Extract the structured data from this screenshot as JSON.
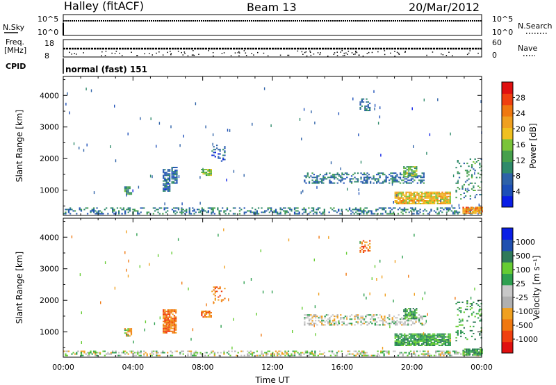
{
  "header": {
    "station": "Halley (fitACF)",
    "beam": "Beam 13",
    "date": "20/Mar/2012"
  },
  "top_panels": {
    "nsky_label": "N.Sky",
    "nsearch_label": "N.Search",
    "nsky_ticks": [
      "10^5",
      "10^0"
    ],
    "nsearch_ticks": [
      "10^5",
      "10^0"
    ],
    "freq_label_1": "Freq.",
    "freq_label_2": "[MHz]",
    "freq_ticks": [
      "18",
      "8"
    ],
    "nave_label": "Nave",
    "nave_ticks": [
      "60",
      "0"
    ],
    "cpid_label": "CPID",
    "cpid_value": "normal (fast) 151"
  },
  "colors": {
    "power": [
      "#0a1ee6",
      "#1d4fb8",
      "#2e62a8",
      "#2f8a6a",
      "#46a04c",
      "#7ac43a",
      "#f0c020",
      "#f0a020",
      "#f07810",
      "#f04010",
      "#e01010"
    ],
    "velocity": [
      "#e01010",
      "#f04010",
      "#f07810",
      "#f0a020",
      "#b0b0b0",
      "#c8c8c8",
      "#2fa050",
      "#66cc33",
      "#2f7a5a",
      "#2050b0",
      "#0a1ee6"
    ]
  },
  "chart_data": [
    {
      "type": "heatmap",
      "name": "power",
      "xlabel": "",
      "ylabel": "Slant Range [km]",
      "ylim": [
        200,
        4600
      ],
      "xlim": [
        0,
        24
      ],
      "y_ticks": [
        "1000",
        "2000",
        "3000",
        "4000"
      ],
      "colorbar_label": "Power [dB]",
      "colorbar_ticks": [
        "4",
        "8",
        "12",
        "16",
        "20",
        "24",
        "28"
      ],
      "colorbar_range": [
        0,
        32
      ],
      "regions": [
        {
          "t0": 0.0,
          "t1": 24.0,
          "r0": 230,
          "r1": 450,
          "value": 8,
          "density": 0.35
        },
        {
          "t0": 3.5,
          "t1": 3.9,
          "r0": 850,
          "r1": 1100,
          "value": 10,
          "density": 0.7
        },
        {
          "t0": 5.7,
          "t1": 6.1,
          "r0": 950,
          "r1": 1650,
          "value": 6,
          "density": 0.8
        },
        {
          "t0": 6.2,
          "t1": 6.5,
          "r0": 1200,
          "r1": 1700,
          "value": 6,
          "density": 0.8
        },
        {
          "t0": 7.9,
          "t1": 8.5,
          "r0": 1450,
          "r1": 1650,
          "value": 14,
          "density": 0.8
        },
        {
          "t0": 13.8,
          "t1": 20.8,
          "r0": 1200,
          "r1": 1550,
          "value": 7,
          "density": 0.45
        },
        {
          "t0": 19.5,
          "t1": 20.3,
          "r0": 1400,
          "r1": 1750,
          "value": 14,
          "density": 0.7
        },
        {
          "t0": 19.0,
          "t1": 22.2,
          "r0": 550,
          "r1": 950,
          "value": 20,
          "density": 0.85
        },
        {
          "t0": 22.9,
          "t1": 24.0,
          "r0": 250,
          "r1": 450,
          "value": 24,
          "density": 0.9
        },
        {
          "t0": 17.0,
          "t1": 17.6,
          "r0": 3500,
          "r1": 3900,
          "value": 6,
          "density": 0.4
        },
        {
          "t0": 8.5,
          "t1": 9.3,
          "r0": 1900,
          "r1": 2400,
          "value": 5,
          "density": 0.25
        },
        {
          "t0": 22.5,
          "t1": 24.0,
          "r0": 700,
          "r1": 2000,
          "value": 10,
          "density": 0.15
        }
      ]
    },
    {
      "type": "heatmap",
      "name": "velocity",
      "xlabel": "Time UT",
      "ylabel": "Slant Range [km]",
      "ylim": [
        200,
        4600
      ],
      "xlim": [
        0,
        24
      ],
      "x_ticks": [
        "00:00",
        "04:00",
        "08:00",
        "12:00",
        "16:00",
        "20:00",
        "00:00"
      ],
      "y_ticks": [
        "1000",
        "2000",
        "3000",
        "4000"
      ],
      "colorbar_label": "Velocity [m s⁻¹]",
      "colorbar_ticks": [
        "1000",
        "500",
        "100",
        "25",
        "-25",
        "-100",
        "-500",
        "-1000"
      ],
      "regions": [
        {
          "t0": 0.0,
          "t1": 24.0,
          "r0": 230,
          "r1": 400,
          "value": "low",
          "density": 0.35
        },
        {
          "t0": 3.5,
          "t1": 3.9,
          "r0": 850,
          "r1": 1100,
          "value": "mixed",
          "density": 0.7
        },
        {
          "t0": 5.7,
          "t1": 6.5,
          "r0": 950,
          "r1": 1700,
          "value": "neg",
          "density": 0.8
        },
        {
          "t0": 7.9,
          "t1": 8.5,
          "r0": 1450,
          "r1": 1650,
          "value": "neg",
          "density": 0.8
        },
        {
          "t0": 13.8,
          "t1": 20.8,
          "r0": 1200,
          "r1": 1550,
          "value": "zero",
          "density": 0.45
        },
        {
          "t0": 19.5,
          "t1": 20.3,
          "r0": 1400,
          "r1": 1750,
          "value": "pos",
          "density": 0.7
        },
        {
          "t0": 19.0,
          "t1": 22.2,
          "r0": 550,
          "r1": 950,
          "value": "pos",
          "density": 0.85
        },
        {
          "t0": 22.9,
          "t1": 24.0,
          "r0": 250,
          "r1": 450,
          "value": "pos",
          "density": 0.9
        },
        {
          "t0": 17.0,
          "t1": 17.6,
          "r0": 3500,
          "r1": 3900,
          "value": "neg",
          "density": 0.4
        },
        {
          "t0": 8.5,
          "t1": 9.3,
          "r0": 1900,
          "r1": 2400,
          "value": "neg",
          "density": 0.25
        },
        {
          "t0": 22.5,
          "t1": 24.0,
          "r0": 700,
          "r1": 2000,
          "value": "pos",
          "density": 0.15
        }
      ]
    }
  ]
}
